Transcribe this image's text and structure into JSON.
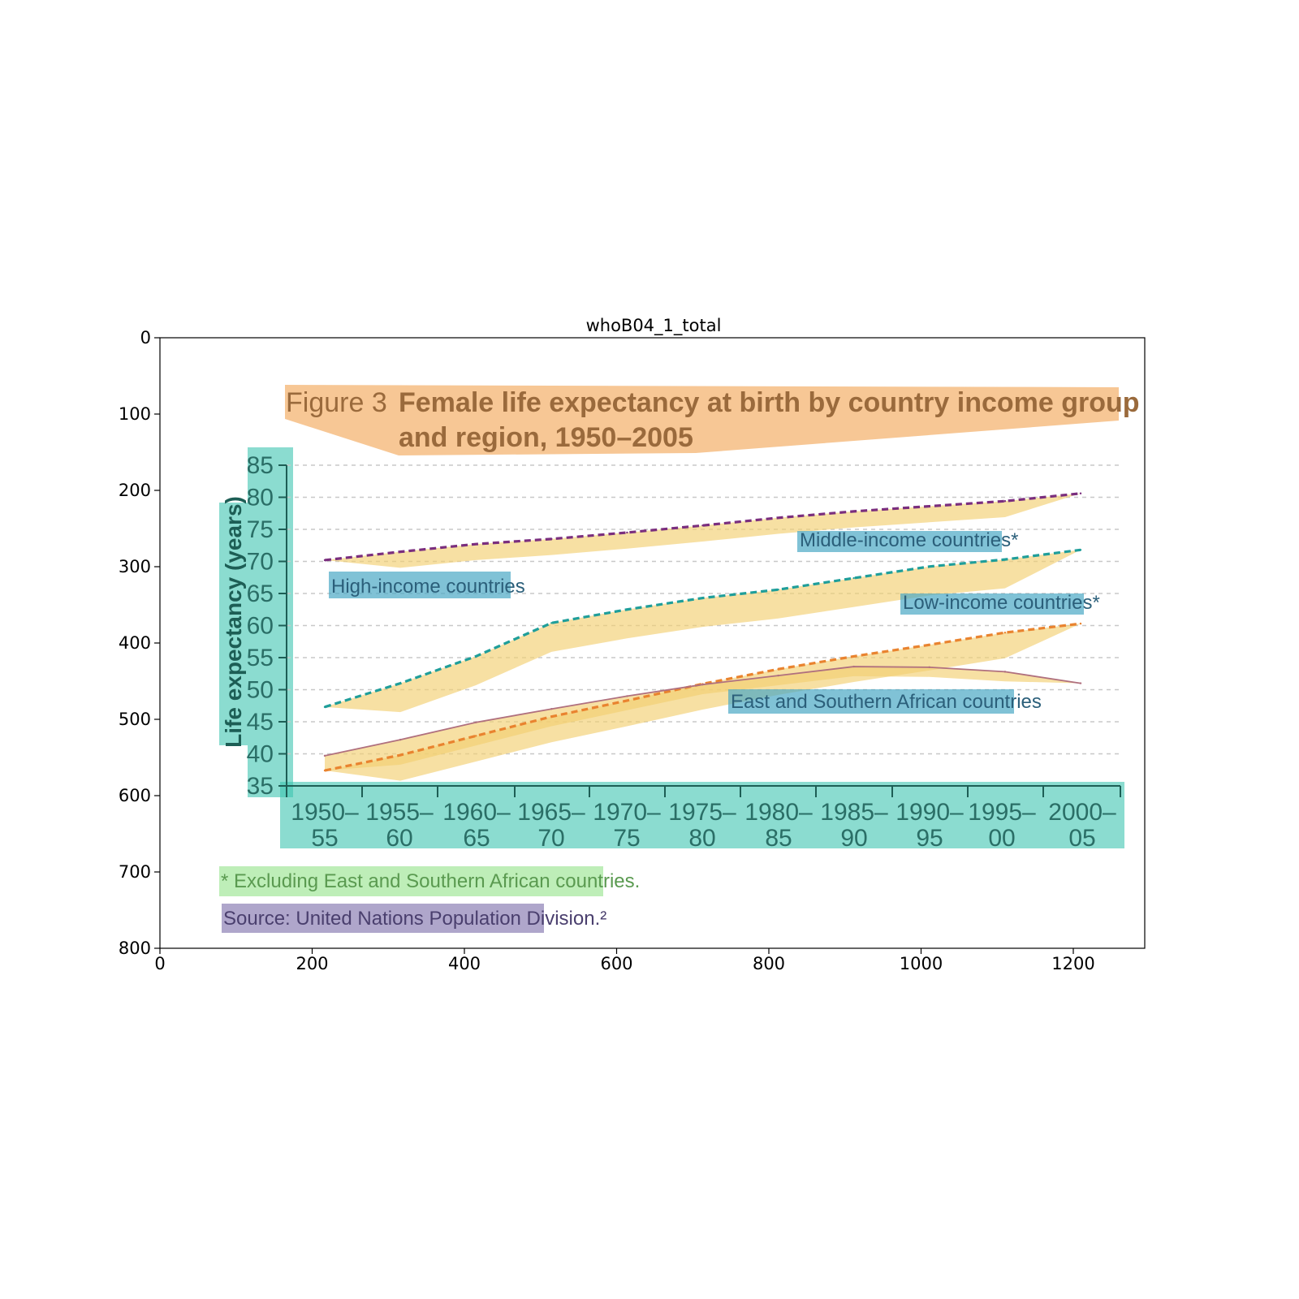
{
  "frame": {
    "title": "whoB04_1_total",
    "x_ticks": [
      "0",
      "200",
      "400",
      "600",
      "800",
      "1000",
      "1200"
    ],
    "y_ticks": [
      "0",
      "100",
      "200",
      "300",
      "400",
      "500",
      "600",
      "700",
      "800"
    ]
  },
  "figure": {
    "title_prefix": "Figure 3",
    "title_line1": "Female life expectancy at birth by country income group",
    "title_line2": "and region, 1950–2005",
    "footnote": "* Excluding East and Southern African countries.",
    "source": "Source: United Nations Population Division.²"
  },
  "colors": {
    "title_box": "#f5b97a",
    "title_text": "#9a6a3c",
    "axis_box": "#3ec4b0",
    "axis_line": "#1d5e55",
    "label_box": "#4aa8c4",
    "band": "#f3cf72",
    "high": "#7a2e7e",
    "middle": "#1f9e9a",
    "low": "#e9832f",
    "esa": "#b0707e",
    "footnote_box": "#9be592",
    "footnote_text": "#5a9a50",
    "source_box": "#7a6aa8",
    "source_text": "#4a3f6e"
  },
  "chart_data": {
    "type": "line",
    "title": "Female life expectancy at birth by country income group and region, 1950–2005",
    "ylabel": "Life expectancy (years)",
    "xlabel": "",
    "ylim": [
      35,
      85
    ],
    "y_ticks": [
      "35",
      "40",
      "45",
      "50",
      "55",
      "60",
      "65",
      "70",
      "75",
      "80",
      "85"
    ],
    "categories": [
      [
        "1950–",
        "55"
      ],
      [
        "1955–",
        "60"
      ],
      [
        "1960–",
        "65"
      ],
      [
        "1965–",
        "70"
      ],
      [
        "1970–",
        "75"
      ],
      [
        "1975–",
        "80"
      ],
      [
        "1980–",
        "85"
      ],
      [
        "1985–",
        "90"
      ],
      [
        "1990–",
        "95"
      ],
      [
        "1995–",
        "00"
      ],
      [
        "2000–",
        "05"
      ]
    ],
    "grid": true,
    "series": [
      {
        "name": "High-income countries",
        "style": "dashed",
        "color_key": "high",
        "values": [
          70.2,
          71.5,
          72.7,
          73.5,
          74.5,
          75.6,
          76.8,
          77.8,
          78.6,
          79.4,
          80.6
        ]
      },
      {
        "name": "Middle-income countries*",
        "style": "dashed",
        "color_key": "middle",
        "values": [
          47.3,
          51.0,
          55.2,
          60.4,
          62.5,
          64.3,
          65.6,
          67.4,
          69.2,
          70.3,
          71.8
        ]
      },
      {
        "name": "Low-income countries*",
        "style": "dashed",
        "color_key": "low",
        "values": [
          37.4,
          39.8,
          42.8,
          45.8,
          48.3,
          50.9,
          53.2,
          55.2,
          57.0,
          58.9,
          60.3
        ]
      },
      {
        "name": "East and Southern African countries",
        "style": "solid",
        "color_key": "esa",
        "values": [
          39.7,
          42.2,
          44.9,
          47.0,
          49.0,
          50.8,
          52.2,
          53.6,
          53.5,
          52.8,
          51.0
        ]
      }
    ]
  }
}
